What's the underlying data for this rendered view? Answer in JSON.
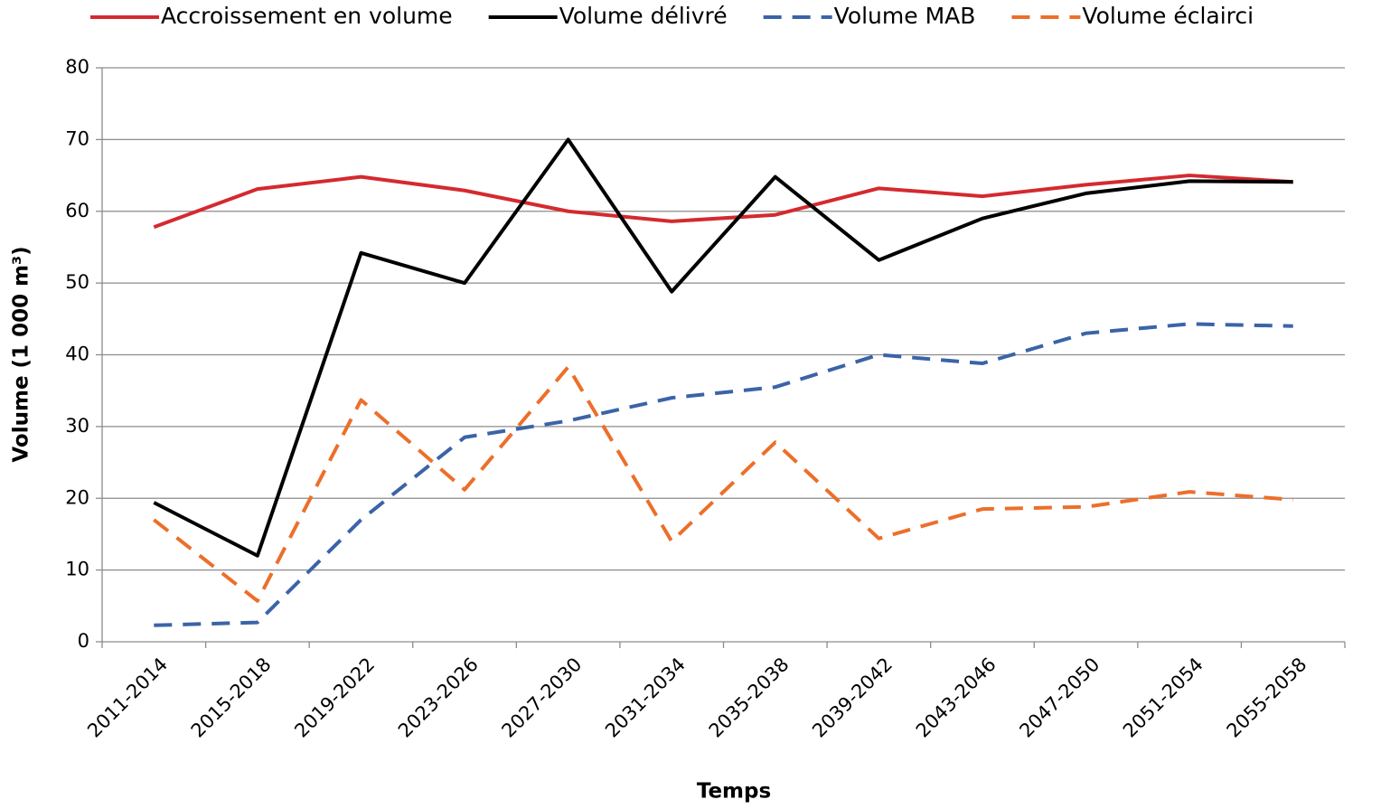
{
  "chart_data": {
    "type": "line",
    "xlabel": "Temps",
    "ylabel": "Volume (1 000 m³)",
    "categories": [
      "2011-2014",
      "2015-2018",
      "2019-2022",
      "2023-2026",
      "2027-2030",
      "2031-2034",
      "2035-2038",
      "2039-2042",
      "2043-2046",
      "2047-2050",
      "2051-2054",
      "2055-2058"
    ],
    "series": [
      {
        "name": "Accroissement en volume",
        "color": "#d42a2f",
        "dashed": false,
        "values": [
          57.8,
          63.1,
          64.8,
          62.9,
          60.0,
          58.6,
          59.5,
          63.2,
          62.1,
          63.7,
          65.0,
          64.1
        ]
      },
      {
        "name": "Volume délivré",
        "color": "#000000",
        "dashed": false,
        "values": [
          19.4,
          12.0,
          54.2,
          50.0,
          70.0,
          48.8,
          64.8,
          53.2,
          59.0,
          62.5,
          64.2,
          64.1
        ]
      },
      {
        "name": "Volume MAB",
        "color": "#3b63a8",
        "dashed": true,
        "values": [
          2.3,
          2.7,
          17.0,
          28.5,
          30.8,
          34.0,
          35.5,
          40.0,
          38.8,
          43.0,
          44.3,
          44.0
        ]
      },
      {
        "name": "Volume éclairci",
        "color": "#ec6f2a",
        "dashed": true,
        "values": [
          17.0,
          5.7,
          33.7,
          21.2,
          38.3,
          14.0,
          27.8,
          14.4,
          18.5,
          18.8,
          20.9,
          19.8
        ]
      }
    ],
    "ylim": [
      0,
      80
    ],
    "yticks": [
      0,
      10,
      20,
      30,
      40,
      50,
      60,
      70,
      80
    ],
    "grid": true,
    "legend": "top"
  }
}
